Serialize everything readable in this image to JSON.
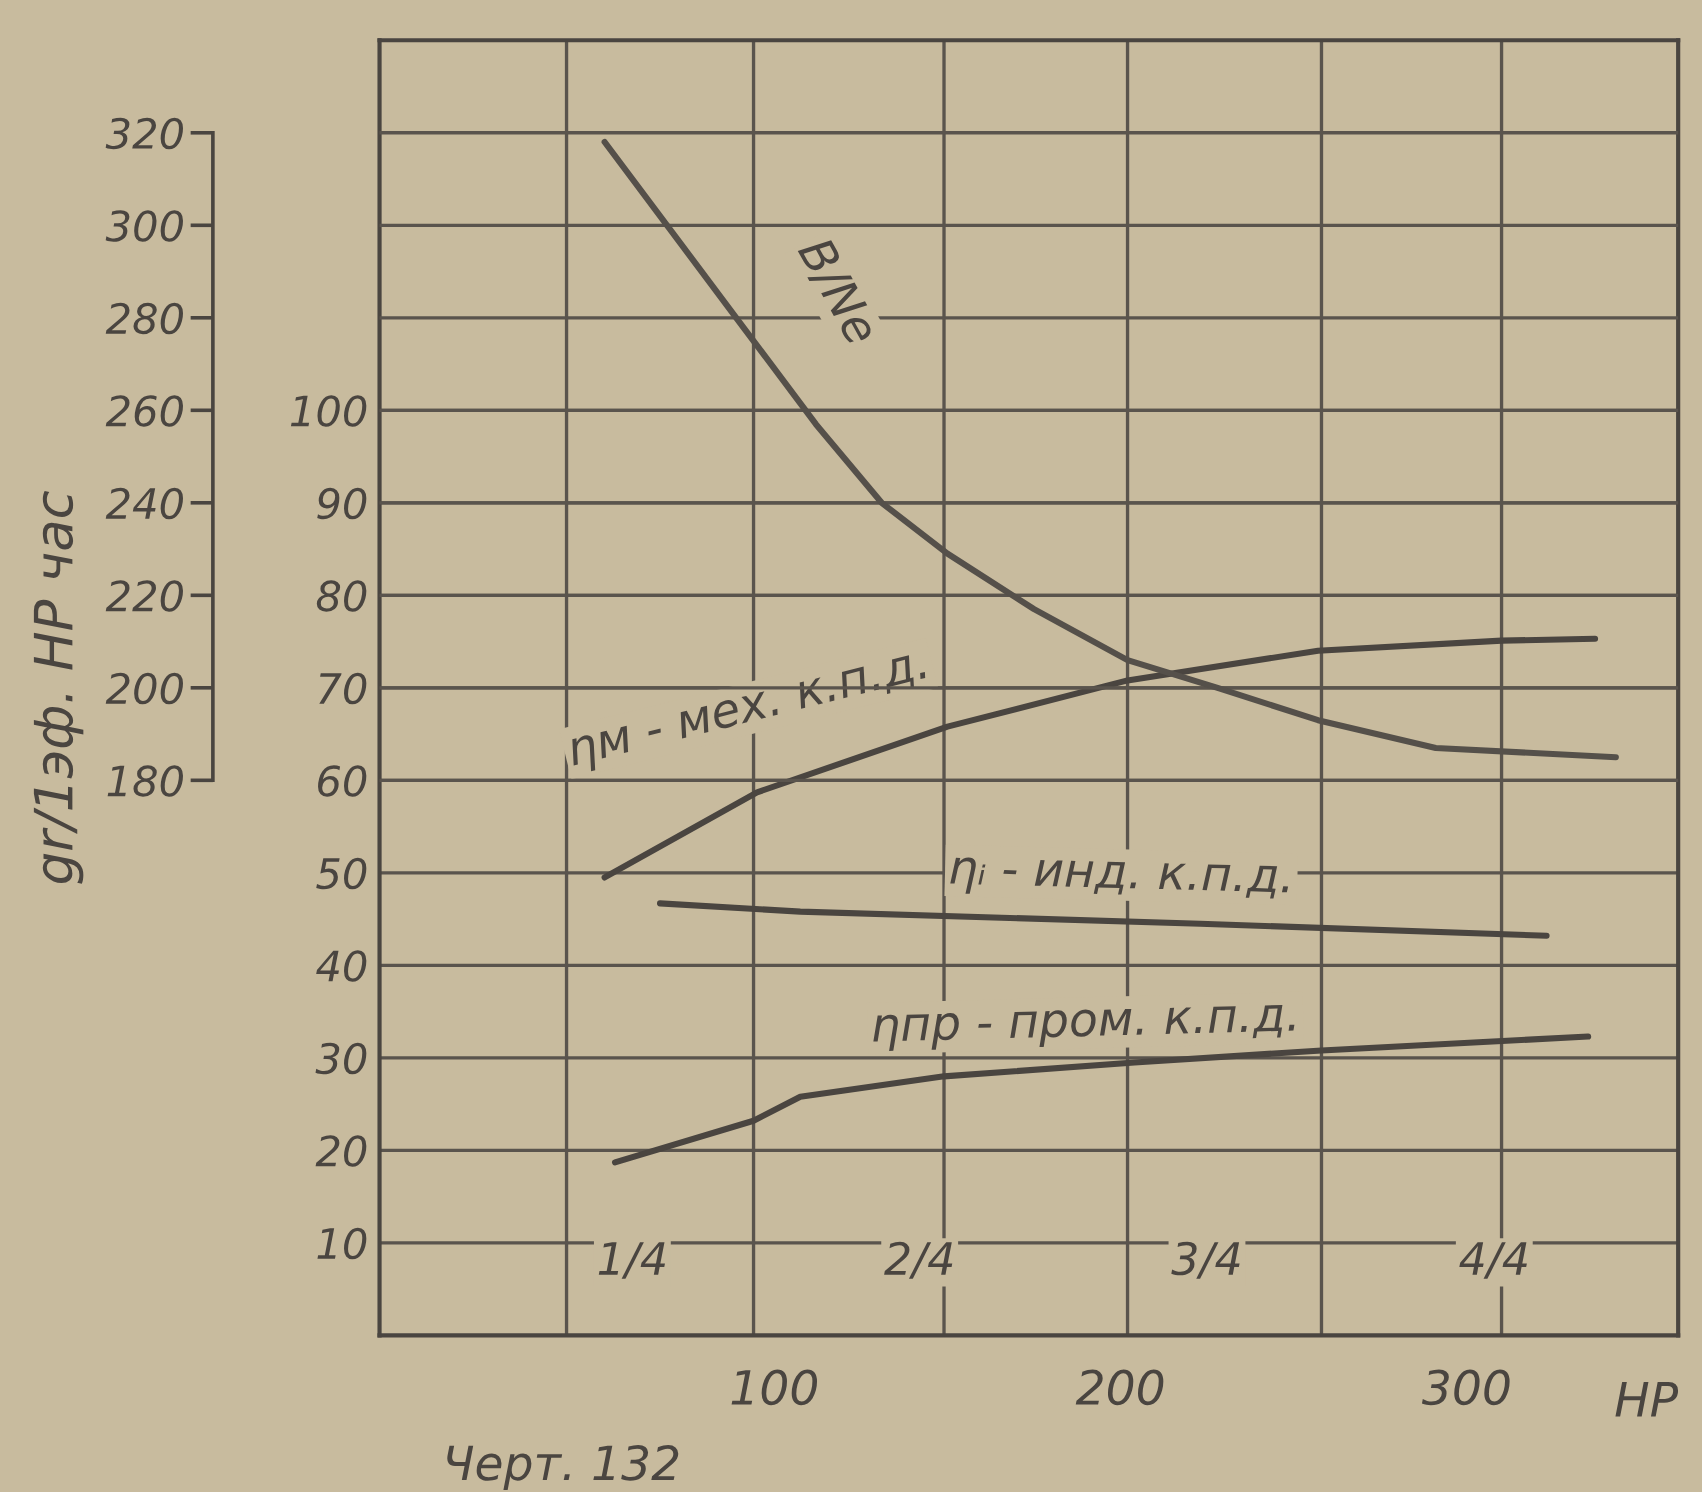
{
  "chart_data": {
    "type": "line",
    "y2label": "gr/1эф. HP час",
    "xlabel": "HP",
    "annotations": [
      "Черт. 132"
    ],
    "xlim": [
      -14,
      361
    ],
    "xticks": [
      100,
      200,
      300
    ],
    "x2lim": [
      0.03,
      1.16
    ],
    "x2ticks": [
      {
        "value": 0.25,
        "label": "1/4"
      },
      {
        "value": 0.5,
        "label": "2/4"
      },
      {
        "value": 0.75,
        "label": "3/4"
      },
      {
        "value": 1.0,
        "label": "4/4"
      }
    ],
    "ylim": [
      0,
      140
    ],
    "yticks": [
      10,
      20,
      30,
      40,
      50,
      60,
      70,
      80,
      90,
      100
    ],
    "y2lim": [
      60,
      340
    ],
    "y2ticks": [
      180,
      200,
      220,
      240,
      260,
      280,
      300,
      320
    ],
    "grid": "y",
    "ref_lines": [
      {
        "axis": "x",
        "value": 40,
        "color": "#5a544d"
      },
      {
        "axis": "x",
        "value": 94,
        "color": "#5a544d"
      },
      {
        "axis": "x",
        "value": 149,
        "color": "#5a544d"
      },
      {
        "axis": "x",
        "value": 202,
        "color": "#5a544d"
      },
      {
        "axis": "x",
        "value": 258,
        "color": "#5a544d"
      },
      {
        "axis": "x",
        "value": 310,
        "color": "#5a544d"
      }
    ],
    "series": [
      {
        "name": "B/Ne",
        "color": "#55504a",
        "axis": "y2",
        "x": [
          51,
          91,
          112,
          131,
          150,
          175,
          202,
          228,
          257,
          291,
          343
        ],
        "values": [
          318,
          278,
          257,
          240,
          229,
          217,
          206,
          200,
          193,
          187,
          185
        ]
      },
      {
        "name": "ηм - мех. к.п.д.",
        "color": "#4a4540",
        "x": [
          51,
          95,
          150,
          202,
          257,
          310,
          337
        ],
        "values": [
          49.5,
          58.7,
          65.8,
          70.8,
          74.0,
          75.1,
          75.3
        ]
      },
      {
        "name": "ηᵢ - инд. к.п.д.",
        "color": "#4a4540",
        "x": [
          67,
          107.5,
          223,
          323
        ],
        "values": [
          46.7,
          45.8,
          44.5,
          43.2
        ]
      },
      {
        "name": "ηпр - пром. к.п.д.",
        "color": "#4a4540",
        "x": [
          54,
          94,
          107.5,
          149,
          204,
          258,
          335
        ],
        "values": [
          18.7,
          23.2,
          25.8,
          28.0,
          29.5,
          30.8,
          32.3
        ]
      }
    ]
  }
}
